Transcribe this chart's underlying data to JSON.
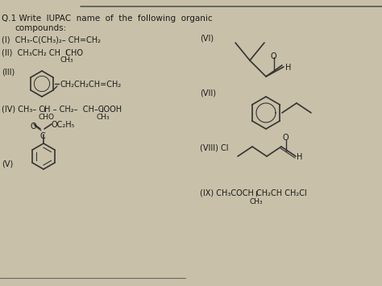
{
  "bg_color": "#c8c0a8",
  "text_color": "#1a1a1a",
  "line_color": "#333333",
  "page_bg": "#d8d0b8",
  "title1": "Q.1 Write  IUPAC  name  of  the  following  organic",
  "title2": "     compounds:",
  "i1": "(I)  CH₃-C(CH₃)₂– CH=CH₂",
  "i2_a": "(II)  CH₃CH₂ CH  CHO",
  "i2_b": "              CH₃",
  "i3_label": "(III)",
  "i3_chain": "CH₂CH₂CH=CH₂",
  "i4_a": "(IV) CH₃– CH – CH₂–  CH–COOH",
  "i4_b": "          CHO          CH₃",
  "i5_label": "(V)",
  "i5_ester": "OC₂H₅",
  "vi_label": "(VI)",
  "vii_label": "(VII)",
  "viii_label": "(VIII) Cl",
  "viii_h": "H",
  "ix": "(IX) CH₃COCH CH₂CH CH₂Cl",
  "ix_sub": "              CH₃"
}
